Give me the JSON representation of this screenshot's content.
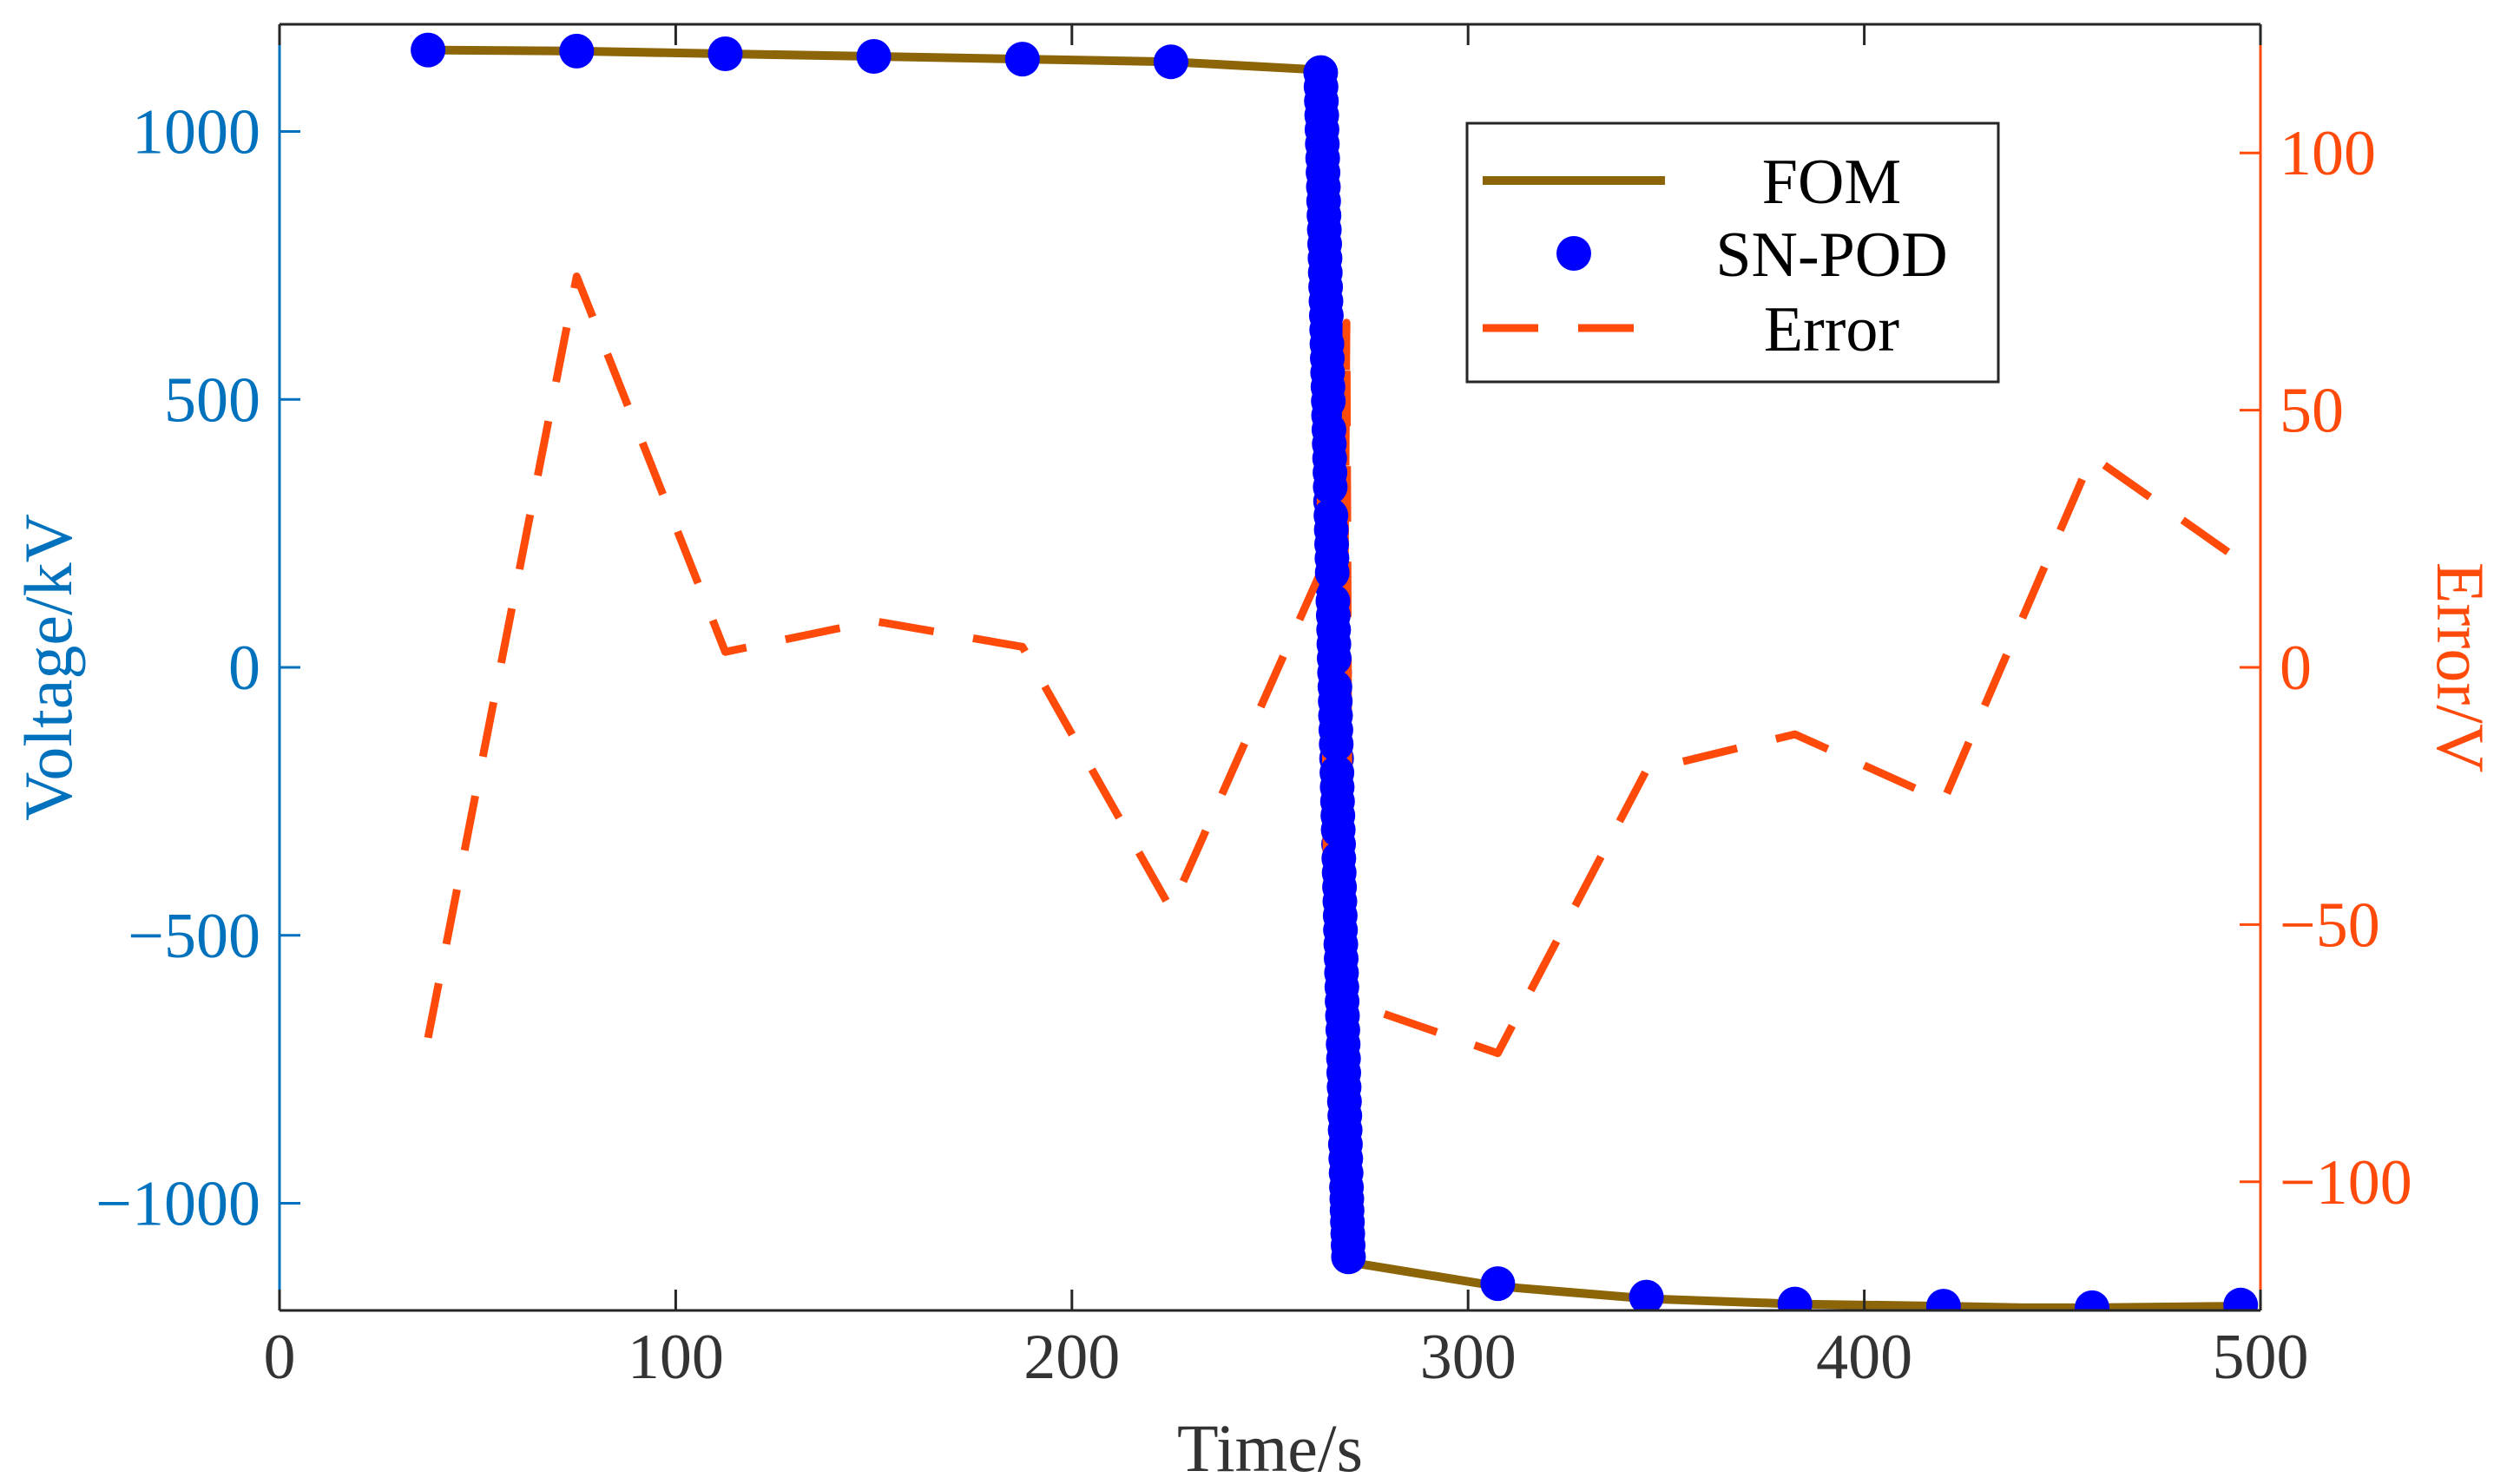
{
  "chart_data": {
    "type": "line",
    "title": "",
    "xlabel": "Time/s",
    "ylabel_left": "Voltage/kV",
    "ylabel_right": "Error/V",
    "xlim": [
      0,
      500
    ],
    "ylim_left": [
      -1200,
      1200
    ],
    "ylim_right": [
      -125,
      125
    ],
    "x_ticks": [
      "0",
      "100",
      "200",
      "300",
      "400",
      "500"
    ],
    "x_tick_values": [
      0,
      100,
      200,
      300,
      400,
      500
    ],
    "y_left_ticks": [
      "1000",
      "500",
      "0",
      "−500",
      "−1000"
    ],
    "y_left_tick_values": [
      1000,
      500,
      0,
      -500,
      -1000
    ],
    "y_right_ticks": [
      "100",
      "50",
      "0",
      "−50",
      "−100"
    ],
    "y_right_tick_values": [
      100,
      50,
      0,
      -50,
      -100
    ],
    "legend": {
      "position": "top-right",
      "entries": [
        "FOM",
        "SN-POD",
        "Error"
      ]
    },
    "colors": {
      "fom": "#8B6508",
      "snpod": "#0000FF",
      "error": "#FF4A0A",
      "left_axis": "#0072BD",
      "right_axis": "#FF4A0A",
      "x_axis": "#333333"
    },
    "series": [
      {
        "name": "FOM",
        "axis": "left",
        "style": "solid",
        "x": [
          37.5,
          75,
          112.5,
          150,
          187.5,
          225,
          262.5,
          262.6,
          269.9,
          270,
          307.5,
          345,
          382.5,
          420,
          440,
          457.5,
          495
        ],
        "y": [
          1152,
          1150,
          1145,
          1140,
          1135,
          1130,
          1115,
          1115,
          -1110,
          -1110,
          -1155,
          -1178,
          -1188,
          -1192,
          -1195,
          -1195,
          -1192
        ]
      },
      {
        "name": "SN-POD",
        "axis": "left",
        "style": "markers",
        "x": [
          37.5,
          75,
          112.5,
          150,
          187.5,
          225,
          262.8,
          263.3,
          263.8,
          264.3,
          264.8,
          265.3,
          265.8,
          266.3,
          266.8,
          267.3,
          267.8,
          268.3,
          268.8,
          269.3,
          269.8,
          307.5,
          345,
          382.5,
          420,
          457.5,
          495
        ],
        "y": [
          1152,
          1150,
          1145,
          1140,
          1135,
          1130,
          1110,
          950,
          790,
          630,
          470,
          310,
          150,
          -10,
          -170,
          -330,
          -490,
          -650,
          -810,
          -970,
          -1100,
          -1150,
          -1175,
          -1188,
          -1192,
          -1195,
          -1190
        ]
      },
      {
        "name": "Error",
        "axis": "right",
        "style": "dashed",
        "x": [
          37.5,
          75,
          112.5,
          150,
          187.5,
          225,
          262.5,
          263.5,
          264.3,
          265,
          265.7,
          266.4,
          267.1,
          267.8,
          268.5,
          269.3,
          270,
          307.5,
          345,
          382.5,
          420,
          457.5,
          500
        ],
        "y": [
          -72,
          76,
          3,
          9,
          4,
          -47,
          18,
          65,
          -40,
          60,
          -50,
          50,
          -35,
          40,
          -25,
          67,
          -65,
          -75,
          -20,
          -13,
          -26,
          41,
          18
        ]
      }
    ]
  }
}
